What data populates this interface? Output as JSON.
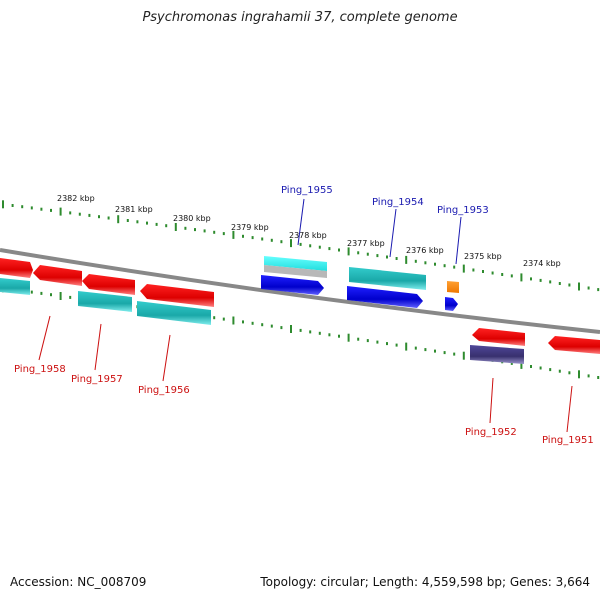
{
  "title": "Psychromonas ingrahamii 37, complete genome",
  "footer": {
    "accession": "Accession: NC_008709",
    "topology": "Topology: circular; Length: 4,559,598 bp; Genes: 3,664"
  },
  "scale_labels": [
    "2382 kbp",
    "2381 kbp",
    "2380 kbp",
    "2379 kbp",
    "2378 kbp",
    "2377 kbp",
    "2376 kbp",
    "2375 kbp",
    "2374 kbp"
  ],
  "gene_labels_top": [
    "Ping_1955",
    "Ping_1954",
    "Ping_1953"
  ],
  "gene_labels_bottom": [
    "Ping_1958",
    "Ping_1957",
    "Ping_1956",
    "Ping_1952",
    "Ping_1951"
  ],
  "colors": {
    "backbone": "#808080",
    "tick": "#2e8b2e",
    "red": "#ee1111",
    "cyan": "#22bbbb",
    "blue": "#1010dd",
    "orange": "#ff8800",
    "navy": "#403a80",
    "light_cyan": "#33eeee",
    "gray": "#b0b0b0"
  }
}
